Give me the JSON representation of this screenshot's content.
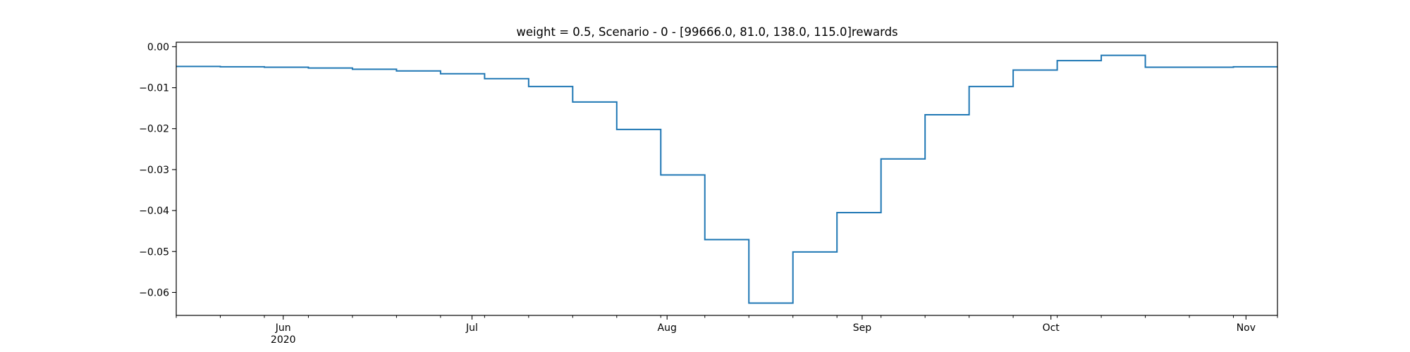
{
  "chart_data": {
    "type": "line",
    "drawstyle": "steps-post",
    "title": "weight = 0.5, Scenario - 0 - [99666.0, 81.0, 138.0, 115.0]rewards",
    "xlabel": "",
    "ylabel": "",
    "xlim": [
      "2020-05-15",
      "2020-11-06"
    ],
    "ylim": [
      -0.0656,
      0.0011
    ],
    "grid": false,
    "line_color": "#1f77b4",
    "y_ticks": [
      0.0,
      -0.01,
      -0.02,
      -0.03,
      -0.04,
      -0.05,
      -0.06
    ],
    "y_tick_labels": [
      "0.00",
      "−0.01",
      "−0.02",
      "−0.03",
      "−0.04",
      "−0.05",
      "−0.06"
    ],
    "x_ticks": [
      {
        "date": "2020-06-01",
        "label": "Jun",
        "sublabel": "2020"
      },
      {
        "date": "2020-07-01",
        "label": "Jul",
        "sublabel": ""
      },
      {
        "date": "2020-08-01",
        "label": "Aug",
        "sublabel": ""
      },
      {
        "date": "2020-09-01",
        "label": "Sep",
        "sublabel": ""
      },
      {
        "date": "2020-10-01",
        "label": "Oct",
        "sublabel": ""
      },
      {
        "date": "2020-11-01",
        "label": "Nov",
        "sublabel": ""
      }
    ],
    "series": [
      {
        "x": [
          "2020-05-15",
          "2020-05-22",
          "2020-05-29",
          "2020-06-05",
          "2020-06-12",
          "2020-06-19",
          "2020-06-26",
          "2020-07-03",
          "2020-07-10",
          "2020-07-17",
          "2020-07-24",
          "2020-07-31",
          "2020-08-07",
          "2020-08-14",
          "2020-08-21",
          "2020-08-28",
          "2020-09-04",
          "2020-09-11",
          "2020-09-18",
          "2020-09-25",
          "2020-10-02",
          "2020-10-09",
          "2020-10-16",
          "2020-10-23",
          "2020-10-30",
          "2020-11-06"
        ],
        "y": [
          -0.0048,
          -0.0049,
          -0.005,
          -0.0052,
          -0.0055,
          -0.0059,
          -0.0066,
          -0.0078,
          -0.0097,
          -0.0135,
          -0.0202,
          -0.0313,
          -0.0471,
          -0.0626,
          -0.0501,
          -0.0405,
          -0.0274,
          -0.0166,
          -0.0097,
          -0.0057,
          -0.0034,
          -0.0021,
          -0.005,
          -0.005,
          -0.0049,
          -0.0049
        ]
      }
    ]
  }
}
